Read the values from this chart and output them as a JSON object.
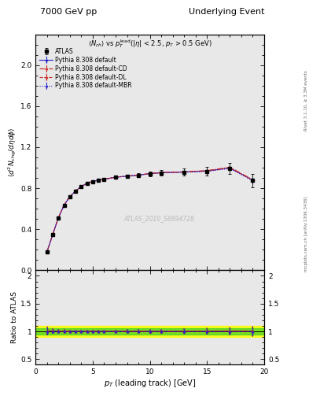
{
  "title_left": "7000 GeV pp",
  "title_right": "Underlying Event",
  "watermark": "ATLAS_2010_S8894728",
  "right_label": "mcplots.cern.ch [arXiv:1306.3436]",
  "right_label2": "Rivet 3.1.10, ≥ 3.3M events",
  "ylabel_ratio": "Ratio to ATLAS",
  "xlabel": "p_{T} (leading track) [GeV]",
  "xlim": [
    0,
    20
  ],
  "ylim_main": [
    0.0,
    2.3
  ],
  "ylim_ratio": [
    0.4,
    2.1
  ],
  "atlas_data": {
    "x": [
      1.0,
      1.5,
      2.0,
      2.5,
      3.0,
      3.5,
      4.0,
      4.5,
      5.0,
      5.5,
      6.0,
      7.0,
      8.0,
      9.0,
      10.0,
      11.0,
      13.0,
      15.0,
      17.0,
      19.0
    ],
    "y": [
      0.18,
      0.345,
      0.51,
      0.635,
      0.715,
      0.77,
      0.815,
      0.845,
      0.865,
      0.875,
      0.885,
      0.905,
      0.915,
      0.925,
      0.94,
      0.95,
      0.955,
      0.965,
      0.995,
      0.875
    ],
    "yerr": [
      0.012,
      0.012,
      0.012,
      0.012,
      0.012,
      0.012,
      0.012,
      0.012,
      0.012,
      0.012,
      0.012,
      0.015,
      0.018,
      0.02,
      0.025,
      0.028,
      0.035,
      0.045,
      0.055,
      0.065
    ],
    "color": "black",
    "marker": "s",
    "label": "ATLAS"
  },
  "series": [
    {
      "label": "Pythia 8.308 default",
      "color": "#2222cc",
      "linestyle": "-",
      "marker": "^",
      "x": [
        1.0,
        1.5,
        2.0,
        2.5,
        3.0,
        3.5,
        4.0,
        4.5,
        5.0,
        5.5,
        6.0,
        7.0,
        8.0,
        9.0,
        10.0,
        11.0,
        13.0,
        15.0,
        17.0,
        19.0
      ],
      "y": [
        0.181,
        0.347,
        0.512,
        0.637,
        0.717,
        0.772,
        0.817,
        0.847,
        0.867,
        0.877,
        0.887,
        0.907,
        0.917,
        0.927,
        0.942,
        0.952,
        0.958,
        0.968,
        0.998,
        0.878
      ],
      "yerr": [
        0.001,
        0.001,
        0.001,
        0.001,
        0.001,
        0.001,
        0.001,
        0.001,
        0.001,
        0.001,
        0.001,
        0.002,
        0.002,
        0.002,
        0.003,
        0.003,
        0.004,
        0.005,
        0.006,
        0.007
      ]
    },
    {
      "label": "Pythia 8.308 default-CD",
      "color": "#cc2222",
      "linestyle": "-.",
      "marker": "^",
      "x": [
        1.0,
        1.5,
        2.0,
        2.5,
        3.0,
        3.5,
        4.0,
        4.5,
        5.0,
        5.5,
        6.0,
        7.0,
        8.0,
        9.0,
        10.0,
        11.0,
        13.0,
        15.0,
        17.0,
        19.0
      ],
      "y": [
        0.182,
        0.348,
        0.513,
        0.638,
        0.718,
        0.773,
        0.818,
        0.848,
        0.868,
        0.878,
        0.888,
        0.908,
        0.918,
        0.928,
        0.943,
        0.953,
        0.96,
        0.972,
        1.005,
        0.882
      ],
      "yerr": [
        0.001,
        0.001,
        0.001,
        0.001,
        0.001,
        0.001,
        0.001,
        0.001,
        0.001,
        0.001,
        0.001,
        0.002,
        0.002,
        0.002,
        0.003,
        0.003,
        0.004,
        0.005,
        0.006,
        0.007
      ]
    },
    {
      "label": "Pythia 8.308 default-DL",
      "color": "#cc2222",
      "linestyle": "--",
      "marker": "^",
      "x": [
        1.0,
        1.5,
        2.0,
        2.5,
        3.0,
        3.5,
        4.0,
        4.5,
        5.0,
        5.5,
        6.0,
        7.0,
        8.0,
        9.0,
        10.0,
        11.0,
        13.0,
        15.0,
        17.0,
        19.0
      ],
      "y": [
        0.181,
        0.347,
        0.512,
        0.637,
        0.717,
        0.772,
        0.817,
        0.847,
        0.867,
        0.877,
        0.887,
        0.907,
        0.917,
        0.927,
        0.942,
        0.95,
        0.957,
        0.967,
        0.997,
        0.877
      ],
      "yerr": [
        0.001,
        0.001,
        0.001,
        0.001,
        0.001,
        0.001,
        0.001,
        0.001,
        0.001,
        0.001,
        0.001,
        0.002,
        0.002,
        0.002,
        0.003,
        0.003,
        0.004,
        0.005,
        0.006,
        0.007
      ]
    },
    {
      "label": "Pythia 8.308 default-MBR",
      "color": "#2222cc",
      "linestyle": ":",
      "marker": "^",
      "x": [
        1.0,
        1.5,
        2.0,
        2.5,
        3.0,
        3.5,
        4.0,
        4.5,
        5.0,
        5.5,
        6.0,
        7.0,
        8.0,
        9.0,
        10.0,
        11.0,
        13.0,
        15.0,
        17.0,
        19.0
      ],
      "y": [
        0.181,
        0.347,
        0.512,
        0.637,
        0.717,
        0.772,
        0.817,
        0.847,
        0.867,
        0.877,
        0.887,
        0.907,
        0.917,
        0.927,
        0.942,
        0.95,
        0.956,
        0.964,
        0.992,
        0.872
      ],
      "yerr": [
        0.001,
        0.001,
        0.001,
        0.001,
        0.001,
        0.001,
        0.001,
        0.001,
        0.001,
        0.001,
        0.001,
        0.002,
        0.002,
        0.002,
        0.003,
        0.003,
        0.004,
        0.005,
        0.006,
        0.007
      ]
    }
  ],
  "ratio_band_yellow": 0.1,
  "ratio_band_green": 0.05,
  "bg_color": "#e8e8e8"
}
